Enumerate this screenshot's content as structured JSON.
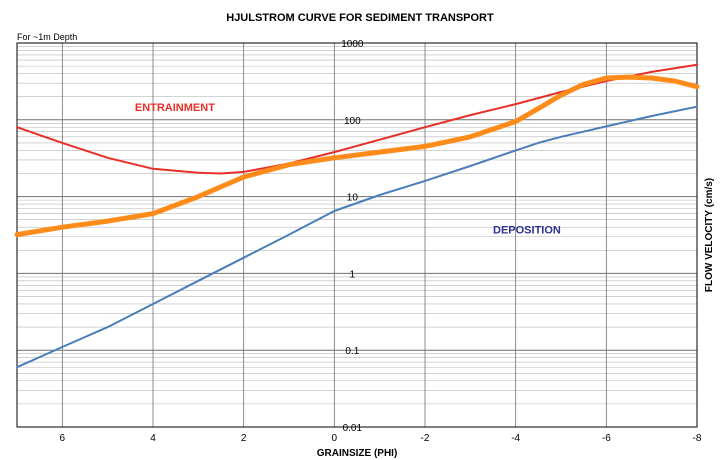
{
  "chart_data": {
    "type": "line",
    "title": "HJULSTROM CURVE FOR SEDIMENT TRANSPORT",
    "subtitle": "For ~1m Depth",
    "xlabel": "GRAINSIZE (PHI)",
    "ylabel": "FLOW VELOCITY (cm/s)",
    "xlim": [
      7,
      -8
    ],
    "ylim": [
      0.01,
      1000
    ],
    "yscale": "log",
    "x_ticks": [
      6,
      4,
      2,
      0,
      -2,
      -4,
      -6,
      -8
    ],
    "x_tick_labels": [
      "6",
      "4",
      "2",
      "0",
      "-2",
      "-4",
      "-6",
      "-8"
    ],
    "y_ticks": [
      0.01,
      0.1,
      1,
      10,
      100,
      1000
    ],
    "y_tick_labels": [
      "0.01",
      "0.1",
      "1",
      "10",
      "100",
      "1000"
    ],
    "grid": true,
    "annotations": [
      {
        "text": "ENTRAINMENT",
        "x": 4.4,
        "y": 130,
        "color": "#e8302a"
      },
      {
        "text": "DEPOSITION",
        "x": -3.5,
        "y": 3.3,
        "color": "#2e3192"
      }
    ],
    "series": [
      {
        "color": "#e8302a",
        "x": [
          7,
          6,
          5,
          4,
          3,
          2.5,
          2,
          1,
          0,
          -1,
          -2,
          -3,
          -4,
          -5,
          -6,
          -7,
          -8
        ],
        "y": [
          80,
          50,
          32,
          23,
          20.5,
          20,
          21,
          27,
          38,
          55,
          80,
          115,
          160,
          230,
          320,
          420,
          520
        ]
      },
      {
        "color": "#4a7ebb",
        "x": [
          7,
          6,
          5,
          4,
          3,
          2,
          1,
          0,
          -1,
          -2,
          -3,
          -4,
          -4.5,
          -5,
          -6,
          -7,
          -8
        ],
        "y": [
          0.06,
          0.11,
          0.2,
          0.4,
          0.8,
          1.6,
          3.2,
          6.5,
          10.5,
          16,
          25,
          40,
          50,
          60,
          82,
          112,
          148
        ]
      },
      {
        "color": "#ff8c1a",
        "x": [
          7,
          6,
          5,
          4,
          3,
          2,
          1,
          0,
          -1,
          -2,
          -3,
          -4,
          -4.5,
          -5,
          -5.5,
          -6,
          -6.5,
          -7,
          -7.5,
          -8
        ],
        "y": [
          3.2,
          4,
          4.8,
          6,
          10,
          18,
          26,
          32,
          38,
          45,
          60,
          95,
          140,
          210,
          290,
          350,
          360,
          350,
          320,
          270
        ]
      }
    ]
  }
}
